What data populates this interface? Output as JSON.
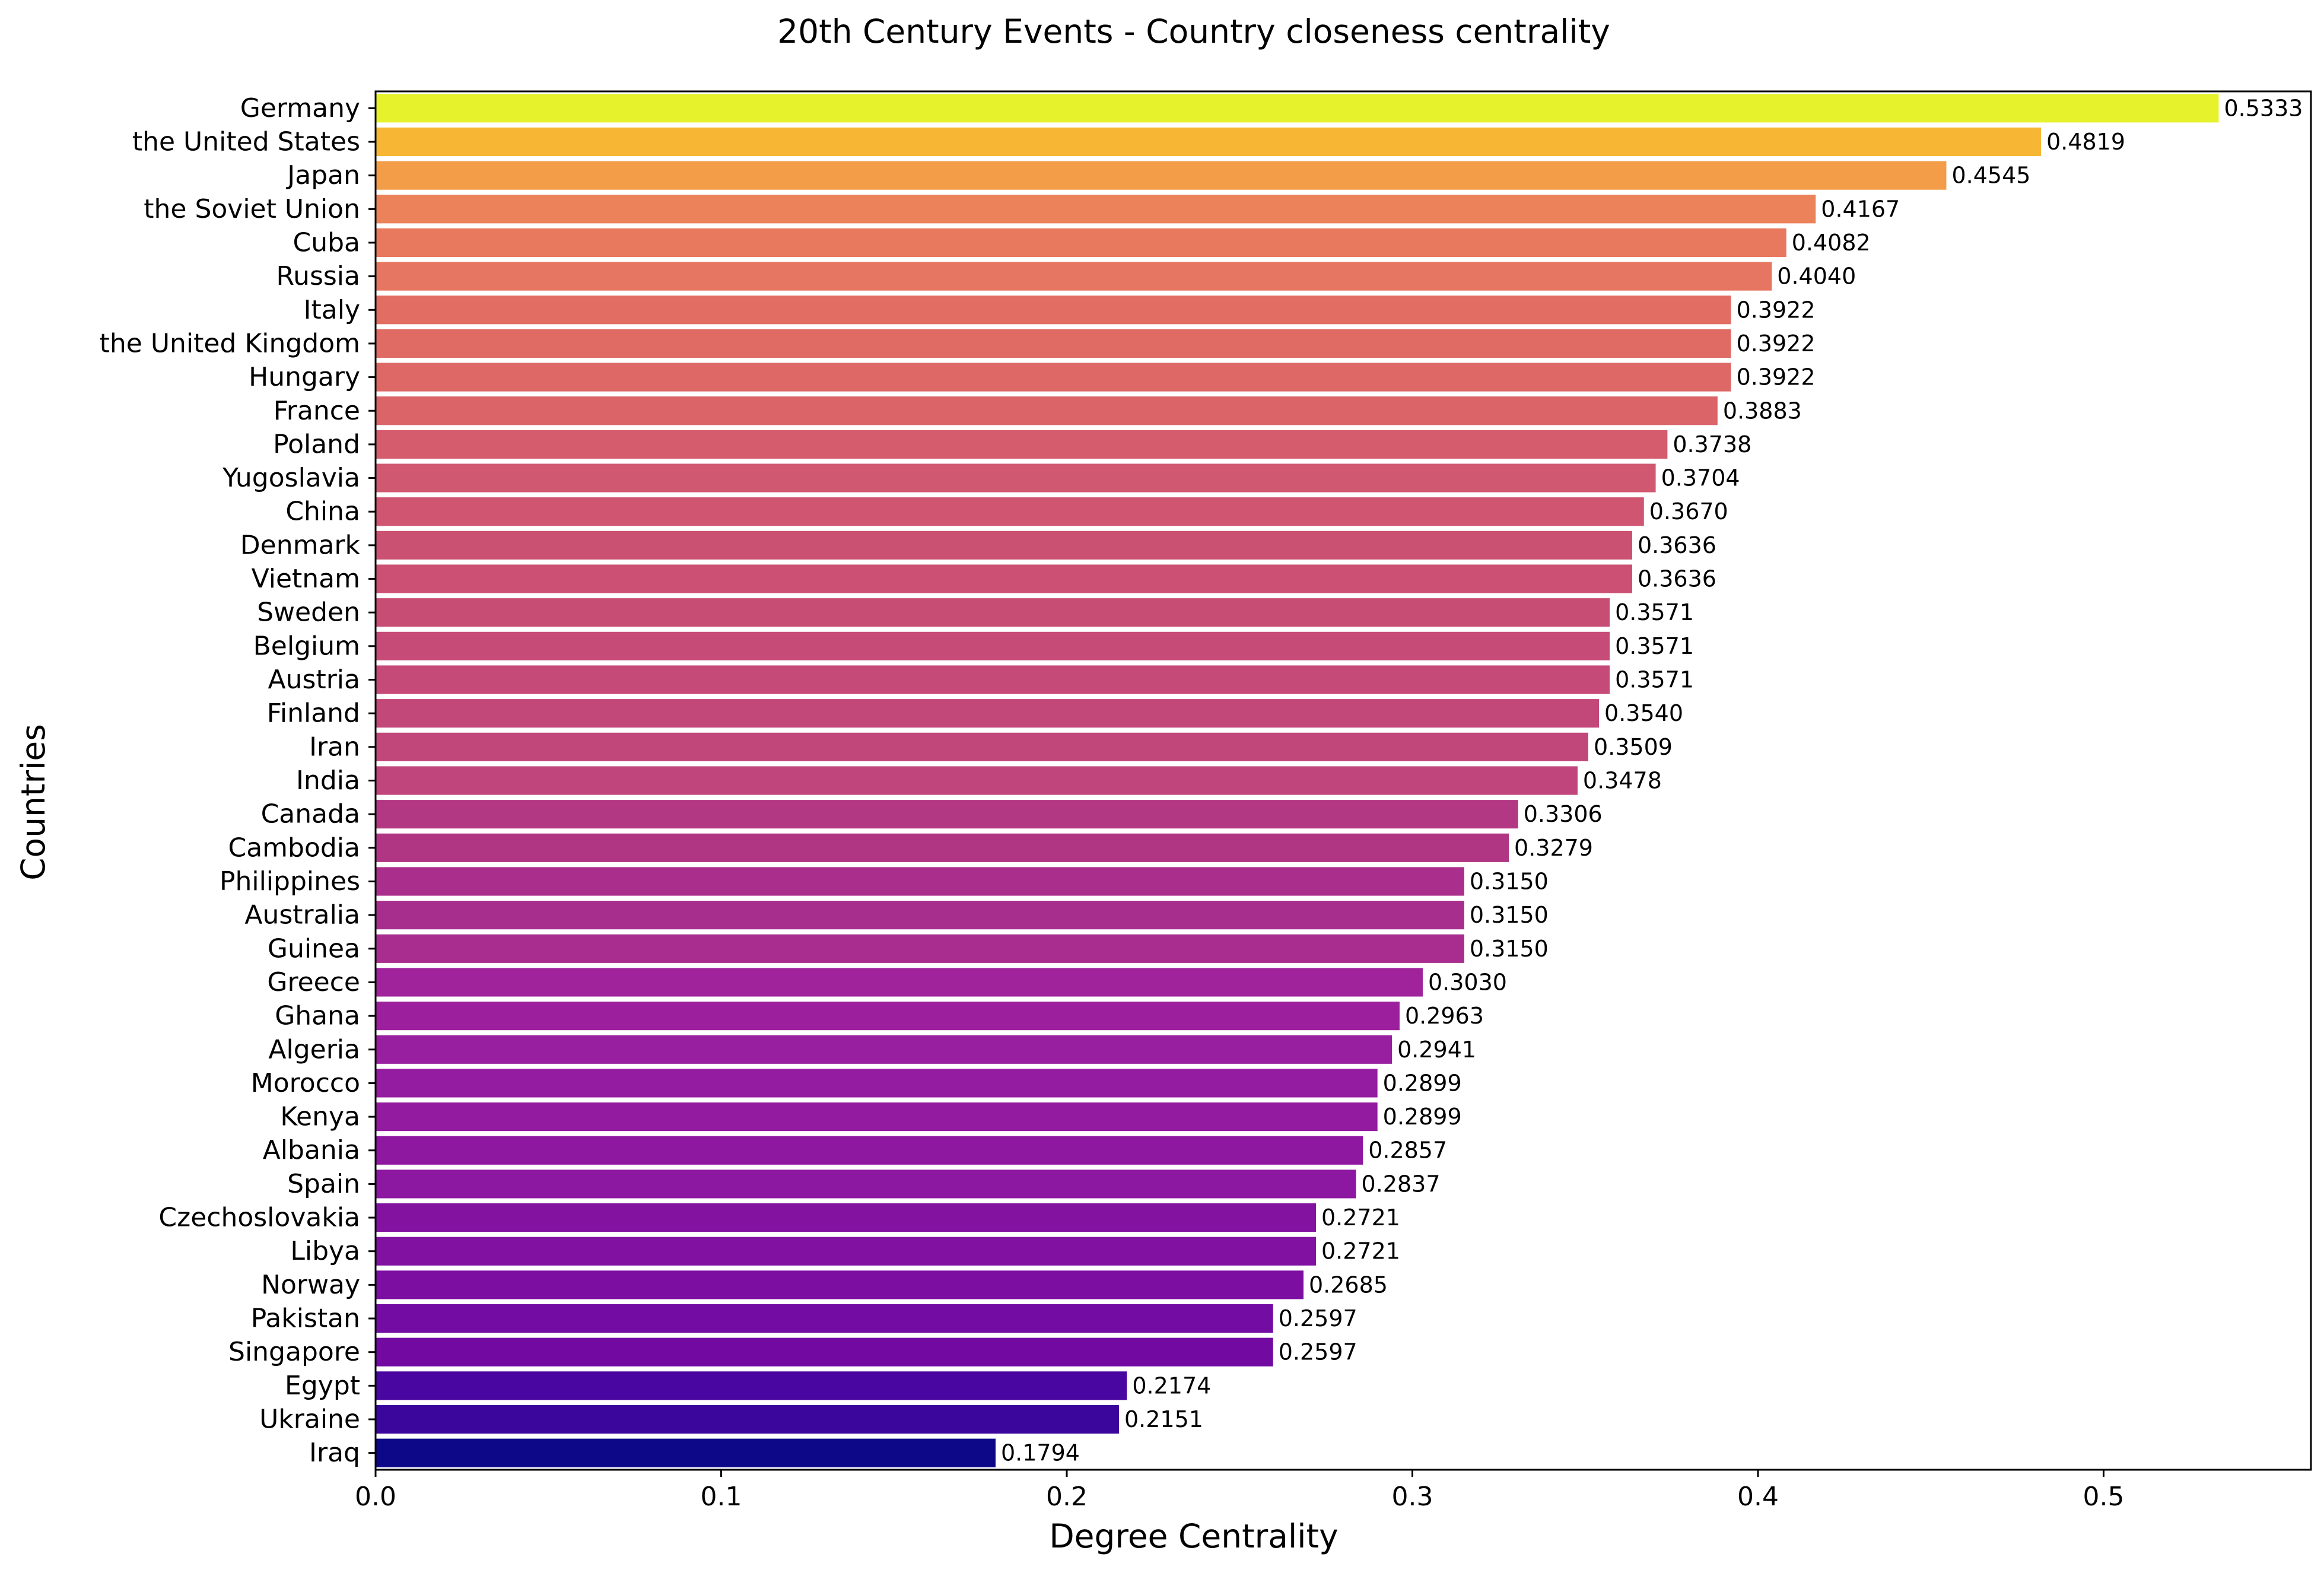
{
  "chart_data": {
    "type": "bar",
    "orientation": "horizontal",
    "title": "20th Century Events - Country closeness centrality",
    "xlabel": "Degree Centrality",
    "ylabel": "Countries",
    "xlim": [
      0,
      0.56
    ],
    "xticks": [
      0.0,
      0.1,
      0.2,
      0.3,
      0.4,
      0.5
    ],
    "xtick_labels": [
      "0.0",
      "0.1",
      "0.2",
      "0.3",
      "0.4",
      "0.5"
    ],
    "grid": false,
    "colormap": "plasma",
    "categories": [
      "Germany",
      "the United States",
      "Japan",
      "the Soviet Union",
      "Cuba",
      "Russia",
      "Italy",
      "the United Kingdom",
      "Hungary",
      "France",
      "Poland",
      "Yugoslavia",
      "China",
      "Denmark",
      "Vietnam",
      "Sweden",
      "Belgium",
      "Austria",
      "Finland",
      "Iran",
      "India",
      "Canada",
      "Cambodia",
      "Philippines",
      "Australia",
      "Guinea",
      "Greece",
      "Ghana",
      "Algeria",
      "Morocco",
      "Kenya",
      "Albania",
      "Spain",
      "Czechoslovakia",
      "Libya",
      "Norway",
      "Pakistan",
      "Singapore",
      "Egypt",
      "Ukraine",
      "Iraq"
    ],
    "values": [
      0.5333,
      0.4819,
      0.4545,
      0.4167,
      0.4082,
      0.404,
      0.3922,
      0.3922,
      0.3922,
      0.3883,
      0.3738,
      0.3704,
      0.367,
      0.3636,
      0.3636,
      0.3571,
      0.3571,
      0.3571,
      0.354,
      0.3509,
      0.3478,
      0.3306,
      0.3279,
      0.315,
      0.315,
      0.315,
      0.303,
      0.2963,
      0.2941,
      0.2899,
      0.2899,
      0.2857,
      0.2837,
      0.2721,
      0.2721,
      0.2685,
      0.2597,
      0.2597,
      0.2174,
      0.2151,
      0.1794
    ],
    "value_labels": [
      "0.5333",
      "0.4819",
      "0.4545",
      "0.4167",
      "0.4082",
      "0.4040",
      "0.3922",
      "0.3922",
      "0.3922",
      "0.3883",
      "0.3738",
      "0.3704",
      "0.3670",
      "0.3636",
      "0.3636",
      "0.3571",
      "0.3571",
      "0.3571",
      "0.3540",
      "0.3509",
      "0.3478",
      "0.3306",
      "0.3279",
      "0.3150",
      "0.3150",
      "0.3150",
      "0.3030",
      "0.2963",
      "0.2941",
      "0.2899",
      "0.2899",
      "0.2857",
      "0.2837",
      "0.2721",
      "0.2721",
      "0.2685",
      "0.2597",
      "0.2597",
      "0.2174",
      "0.2151",
      "0.1794"
    ],
    "colors": [
      "#e6f22b",
      "#f7b735",
      "#f39d48",
      "#ec825a",
      "#e8795f",
      "#e67661",
      "#e26d63",
      "#e06a64",
      "#de6865",
      "#da6468",
      "#d45c6c",
      "#d05870",
      "#cf5571",
      "#cb5173",
      "#cb5073",
      "#c84d75",
      "#c64b77",
      "#c54a78",
      "#c24879",
      "#c1477a",
      "#bf457c",
      "#b33883",
      "#b03684",
      "#aa2f8c",
      "#a82e8d",
      "#a82d8e",
      "#a0239b",
      "#9c209d",
      "#981f9f",
      "#941ca0",
      "#931ba0",
      "#8e18a0",
      "#8c17a0",
      "#8312a1",
      "#8112a1",
      "#7c0ea2",
      "#730ca2",
      "#720aa2",
      "#4a06a0",
      "#3b069b",
      "#0d0887"
    ]
  }
}
